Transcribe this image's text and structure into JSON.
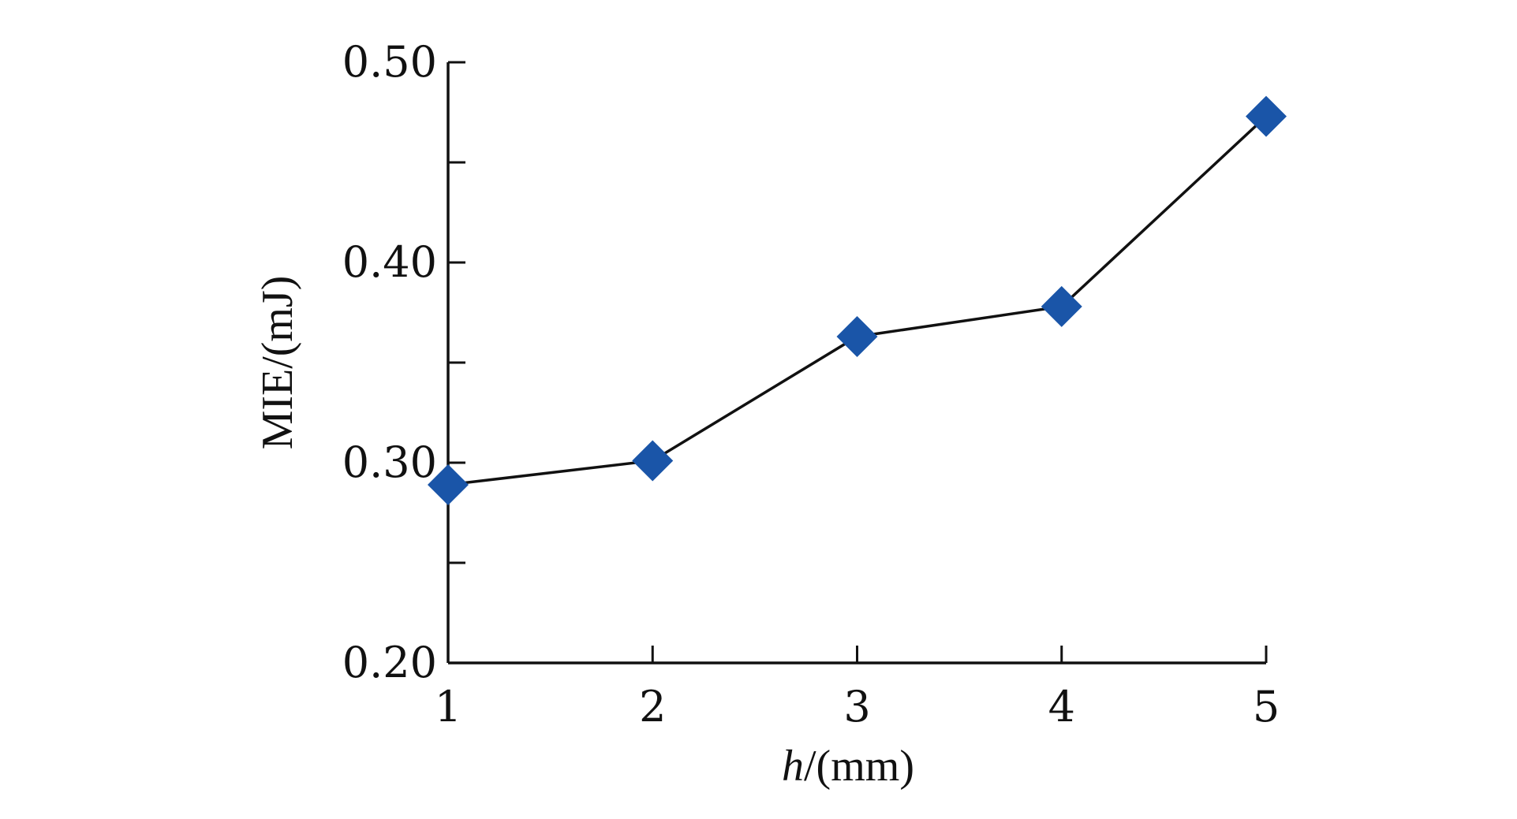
{
  "chart_data": {
    "type": "line",
    "title": "",
    "xlabel_var": "h",
    "xlabel_unit": "/(mm)",
    "ylabel": "MIE/(mJ)",
    "x": [
      1,
      2,
      3,
      4,
      5
    ],
    "xticks": [
      "1",
      "2",
      "3",
      "4",
      "5"
    ],
    "xlim": [
      1,
      5
    ],
    "ylim": [
      0.2,
      0.5
    ],
    "yticks": [
      0.2,
      0.25,
      0.3,
      0.35,
      0.4,
      0.45,
      0.5
    ],
    "ytick_labels": [
      "0.20",
      "",
      "0.30",
      "",
      "0.40",
      "",
      "0.50"
    ],
    "grid": false,
    "legend": "none",
    "series": [
      {
        "values": [
          0.289,
          0.301,
          0.363,
          0.378,
          0.473
        ],
        "marker": "diamond",
        "marker_color": "#1a55a8",
        "line_color": "#111111"
      }
    ]
  }
}
